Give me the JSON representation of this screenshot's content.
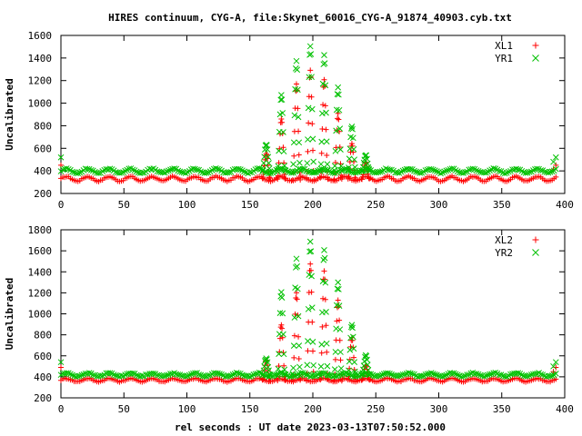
{
  "title": "HIRES continuum, CYG-A, file:Skynet_60016_CYG-A_91874_40903.cyb.txt",
  "xlabel": "rel seconds : UT date 2023-03-13T07:50:52.000",
  "colors": {
    "red": "#ff0000",
    "green": "#00c000"
  },
  "chart_data": [
    {
      "type": "scatter",
      "ylabel": "Uncalibrated",
      "xlim": [
        0,
        400
      ],
      "ylim": [
        200,
        1600
      ],
      "xticks": [
        0,
        50,
        100,
        150,
        200,
        250,
        300,
        350,
        400
      ],
      "yticks": [
        200,
        400,
        600,
        800,
        1000,
        1200,
        1400,
        1600
      ],
      "legend_position": "top-right",
      "series": [
        {
          "name": "XL1",
          "marker": "plus",
          "color": "#ff0000",
          "baseline": 330,
          "amplitude": 20,
          "scan_peaks": [
            560,
            870,
            1170,
            1300,
            1200,
            900,
            650,
            480
          ]
        },
        {
          "name": "YR1",
          "marker": "cross",
          "color": "#00c000",
          "baseline": 400,
          "amplitude": 18,
          "scan_peaks": [
            640,
            1080,
            1370,
            1500,
            1420,
            1130,
            800,
            540
          ]
        }
      ]
    },
    {
      "type": "scatter",
      "ylabel": "Uncalibrated",
      "xlim": [
        0,
        400
      ],
      "ylim": [
        200,
        1800
      ],
      "xticks": [
        0,
        50,
        100,
        150,
        200,
        250,
        300,
        350,
        400
      ],
      "yticks": [
        200,
        400,
        600,
        800,
        1000,
        1200,
        1400,
        1600,
        1800
      ],
      "legend_position": "top-right",
      "series": [
        {
          "name": "XL2",
          "marker": "plus",
          "color": "#ff0000",
          "baseline": 370,
          "amplitude": 15,
          "scan_peaks": [
            560,
            900,
            1200,
            1480,
            1400,
            1120,
            780,
            500
          ]
        },
        {
          "name": "YR2",
          "marker": "cross",
          "color": "#00c000",
          "baseline": 420,
          "amplitude": 15,
          "scan_peaks": [
            580,
            1210,
            1520,
            1680,
            1600,
            1290,
            900,
            600
          ]
        }
      ]
    }
  ]
}
